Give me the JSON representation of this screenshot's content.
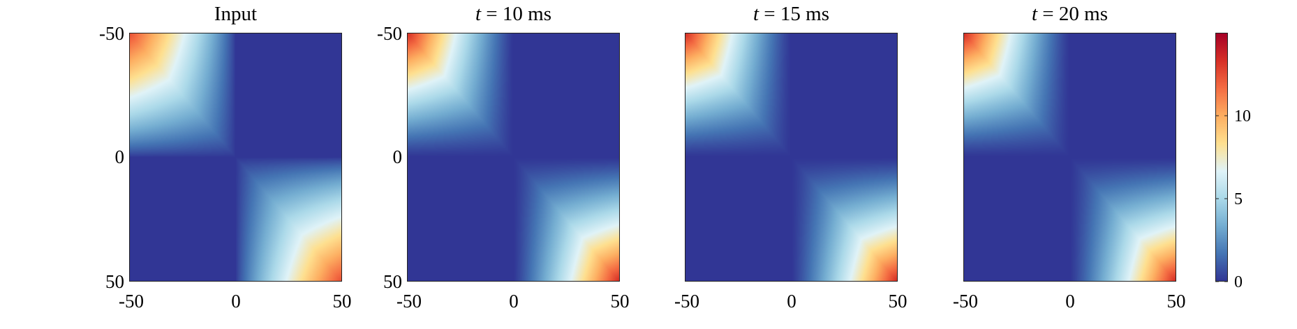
{
  "chart_data": [
    {
      "type": "heatmap",
      "title": "Input",
      "xlim": [
        -50,
        50
      ],
      "ylim": [
        -50,
        50
      ],
      "xticks": [
        "-50",
        "0",
        "50"
      ],
      "yticks": [
        "-50",
        "0",
        "50"
      ],
      "z_description_peaks": [
        {
          "x": -50,
          "y": -50,
          "value": 10
        },
        {
          "x": 50,
          "y": 50,
          "value": 10
        }
      ],
      "z_baseline": 0
    },
    {
      "type": "heatmap",
      "title": "t = 10 ms",
      "title_var": "t",
      "title_rest": " = 10 ms",
      "xlim": [
        -50,
        50
      ],
      "ylim": [
        -50,
        50
      ],
      "xticks": [
        "-50",
        "0",
        "50"
      ],
      "yticks": [
        "-50",
        "0",
        "50"
      ],
      "z_description_peaks": [
        {
          "x": -50,
          "y": -50,
          "value": 11
        },
        {
          "x": 50,
          "y": 50,
          "value": 11
        }
      ],
      "z_baseline": 0
    },
    {
      "type": "heatmap",
      "title": "t = 15 ms",
      "title_var": "t",
      "title_rest": " = 15 ms",
      "xlim": [
        -50,
        50
      ],
      "ylim": [
        -50,
        50
      ],
      "xticks": [
        "-50",
        "0",
        "50"
      ],
      "yticks": [],
      "z_description_peaks": [
        {
          "x": -50,
          "y": -50,
          "value": 11
        },
        {
          "x": 50,
          "y": 50,
          "value": 11
        }
      ],
      "z_baseline": 0
    },
    {
      "type": "heatmap",
      "title": "t = 20 ms",
      "title_var": "t",
      "title_rest": " = 20 ms",
      "xlim": [
        -50,
        50
      ],
      "ylim": [
        -50,
        50
      ],
      "xticks": [
        "-50",
        "0",
        "50"
      ],
      "yticks": [],
      "z_description_peaks": [
        {
          "x": -50,
          "y": -50,
          "value": 11
        },
        {
          "x": 50,
          "y": 50,
          "value": 12
        }
      ],
      "z_baseline": 0
    }
  ],
  "colorbar": {
    "zlim": [
      0,
      15
    ],
    "ticks": [
      "0",
      "5",
      "10"
    ],
    "tick_values": [
      0,
      5,
      10
    ],
    "colormap": [
      "#313695",
      "#4575b4",
      "#74add1",
      "#abd9e9",
      "#e0f3f8",
      "#fee090",
      "#fdae61",
      "#f46d43",
      "#d73027",
      "#a50026"
    ]
  }
}
